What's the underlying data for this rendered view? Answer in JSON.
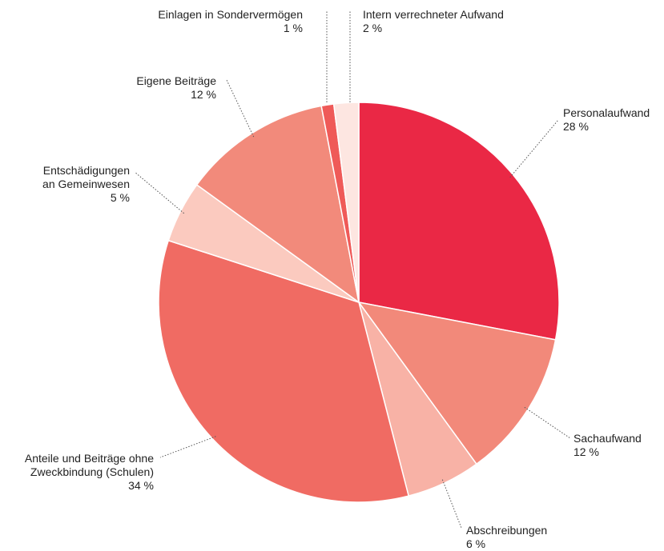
{
  "chart_data": {
    "type": "pie",
    "categories": [
      "Personalaufwand",
      "Sachaufwand",
      "Abschreibungen",
      "Anteile und Beiträge ohne\nZweckbindung (Schulen)",
      "Entschädigungen\nan Gemeinwesen",
      "Eigene Beiträge",
      "Einlagen in Sondervermögen",
      "Intern verrechneter Aufwand"
    ],
    "values": [
      28,
      12,
      6,
      34,
      5,
      12,
      1,
      2
    ],
    "value_labels": [
      "28 %",
      "12 %",
      "6 %",
      "34 %",
      "5 %",
      "12 %",
      "1 %",
      "2 %"
    ],
    "colors": [
      "#ea2845",
      "#f2897a",
      "#f8b2a6",
      "#f06b63",
      "#fbcabf",
      "#f28a7b",
      "#ef5a58",
      "#fde6e1"
    ]
  }
}
